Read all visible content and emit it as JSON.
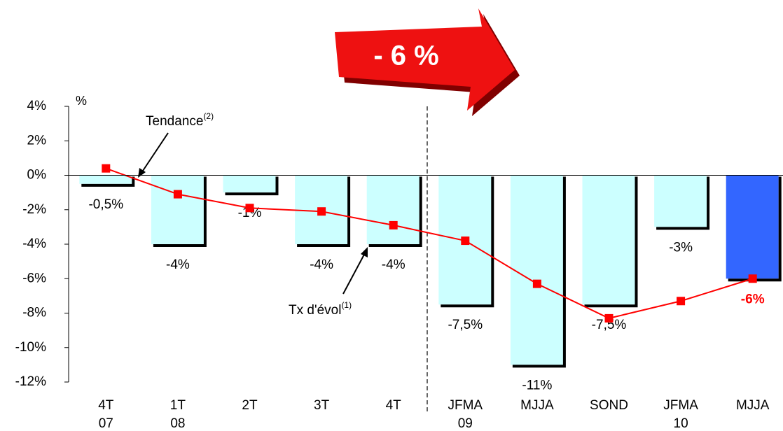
{
  "chart_data": {
    "type": "bar-line",
    "banner": "- 6 %",
    "y_unit": "%",
    "categories": [
      [
        "4T",
        "07"
      ],
      [
        "1T",
        "08"
      ],
      [
        "2T"
      ],
      [
        "3T"
      ],
      [
        "4T"
      ],
      [
        "JFMA",
        "09"
      ],
      [
        "MJJA"
      ],
      [
        "SOND"
      ],
      [
        "JFMA",
        "10"
      ],
      [
        "MJJA"
      ]
    ],
    "ylim": [
      -12,
      4
    ],
    "yticks": [
      {
        "value": 4,
        "label": "4%"
      },
      {
        "value": 2,
        "label": "2%"
      },
      {
        "value": 0,
        "label": "0%"
      },
      {
        "value": -2,
        "label": "-2%"
      },
      {
        "value": -4,
        "label": "-4%"
      },
      {
        "value": -6,
        "label": "-6%"
      },
      {
        "value": -8,
        "label": "-8%"
      },
      {
        "value": -10,
        "label": "-10%"
      },
      {
        "value": -12,
        "label": "-12%"
      }
    ],
    "series": [
      {
        "name": "Tx d'évol",
        "note": "(1)",
        "kind": "bar",
        "colors": [
          "#ccffff",
          "#ccffff",
          "#ccffff",
          "#ccffff",
          "#ccffff",
          "#ccffff",
          "#ccffff",
          "#ccffff",
          "#ccffff",
          "#3366ff"
        ],
        "values": [
          -0.5,
          -4,
          -1,
          -4,
          -4,
          -7.5,
          -11,
          -7.5,
          -3,
          -6
        ],
        "value_labels": [
          "-0,5%",
          "-4%",
          "-1%",
          "-4%",
          "-4%",
          "-7,5%",
          "-11%",
          "-7,5%",
          "-3%",
          "-6%"
        ]
      },
      {
        "name": "Tendance",
        "note": "(2)",
        "kind": "line",
        "color": "#ff0000",
        "values": [
          0.4,
          -1.1,
          -1.9,
          -2.1,
          -2.9,
          -3.8,
          -6.3,
          -8.3,
          -7.3,
          -6.0
        ]
      }
    ]
  }
}
